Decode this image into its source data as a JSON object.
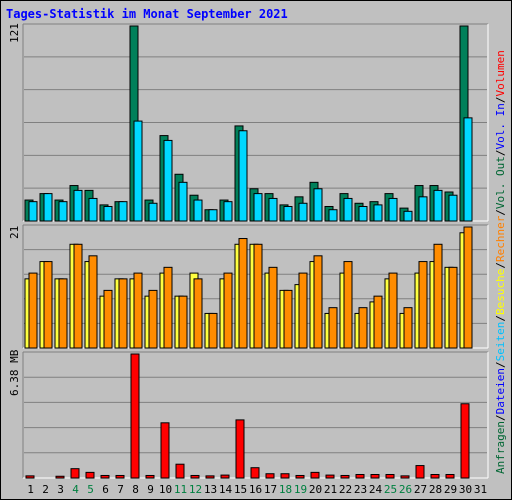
{
  "title": "Tages-Statistik im Monat September 2021",
  "panel_labels": {
    "top_max": "121",
    "mid_max": "21",
    "bottom_max": "6.38 MB"
  },
  "legend": [
    {
      "text": "Anfragen",
      "color": "#006633"
    },
    {
      "sep": "/",
      "color": "#000000"
    },
    {
      "text": "Dateien",
      "color": "#0000ff"
    },
    {
      "sep": "/",
      "color": "#000000"
    },
    {
      "text": "Seiten",
      "color": "#00c0ff"
    },
    {
      "sep": "/",
      "color": "#000000"
    },
    {
      "text": "Besuche",
      "color": "#ffff00"
    },
    {
      "sep": "/",
      "color": "#000000"
    },
    {
      "text": "Rechner",
      "color": "#ff8000"
    },
    {
      "sep": "/",
      "color": "#000000"
    },
    {
      "text": "Vol. Out",
      "color": "#006633"
    },
    {
      "sep": "/",
      "color": "#000000"
    },
    {
      "text": "Vol. In",
      "color": "#0000ff"
    },
    {
      "sep": "/",
      "color": "#000000"
    },
    {
      "text": "Volumen",
      "color": "#ff0000"
    }
  ],
  "colors": {
    "anfragen": "#00805a",
    "dateien": "#00d8ff",
    "seiten": "#00c0ff",
    "besuche": "#ffff40",
    "rechner": "#ff8c00",
    "volumen": "#ff0000",
    "weekday_label": "#000000",
    "weekend_label": "#008040"
  },
  "chart_data": [
    {
      "type": "bar",
      "title": "Tages-Statistik im Monat September 2021",
      "ylabel": "121",
      "ylim": [
        0,
        121
      ],
      "categories": [
        "1",
        "2",
        "3",
        "4",
        "5",
        "6",
        "7",
        "8",
        "9",
        "10",
        "11",
        "12",
        "13",
        "14",
        "15",
        "16",
        "17",
        "18",
        "19",
        "20",
        "21",
        "22",
        "23",
        "24",
        "25",
        "26",
        "27",
        "28",
        "29",
        "30",
        "31"
      ],
      "weekend_days": [
        "4",
        "5",
        "11",
        "12",
        "18",
        "19",
        "25",
        "26"
      ],
      "series": [
        {
          "name": "Anfragen",
          "values": [
            13,
            17,
            13,
            22,
            19,
            10,
            12,
            121,
            13,
            53,
            29,
            16,
            7,
            13,
            59,
            20,
            17,
            10,
            15,
            24,
            9,
            17,
            11,
            12,
            17,
            8,
            22,
            22,
            18,
            121,
            0
          ]
        },
        {
          "name": "Dateien",
          "values": [
            12,
            17,
            12,
            19,
            14,
            9,
            12,
            62,
            11,
            50,
            24,
            13,
            7,
            12,
            56,
            17,
            14,
            9,
            11,
            20,
            7,
            14,
            9,
            10,
            14,
            6,
            15,
            19,
            16,
            64,
            0
          ]
        }
      ]
    },
    {
      "type": "bar",
      "ylabel": "21",
      "ylim": [
        0,
        21
      ],
      "categories": [
        "1",
        "2",
        "3",
        "4",
        "5",
        "6",
        "7",
        "8",
        "9",
        "10",
        "11",
        "12",
        "13",
        "14",
        "15",
        "16",
        "17",
        "18",
        "19",
        "20",
        "21",
        "22",
        "23",
        "24",
        "25",
        "26",
        "27",
        "28",
        "29",
        "30",
        "31"
      ],
      "series": [
        {
          "name": "Besuche",
          "values": [
            12,
            15,
            12,
            18,
            15,
            9,
            12,
            12,
            9,
            13,
            9,
            13,
            6,
            12,
            18,
            18,
            13,
            10,
            11,
            15,
            6,
            13,
            6,
            8,
            12,
            6,
            13,
            15,
            14,
            20,
            0
          ]
        },
        {
          "name": "Rechner",
          "values": [
            13,
            15,
            12,
            18,
            16,
            10,
            12,
            13,
            10,
            14,
            9,
            12,
            6,
            13,
            19,
            18,
            14,
            10,
            13,
            16,
            7,
            15,
            7,
            9,
            13,
            7,
            15,
            18,
            14,
            21,
            0
          ]
        }
      ]
    },
    {
      "type": "bar",
      "ylabel": "6.38 MB",
      "ylim": [
        0,
        6.38
      ],
      "unit": "MB",
      "categories": [
        "1",
        "2",
        "3",
        "4",
        "5",
        "6",
        "7",
        "8",
        "9",
        "10",
        "11",
        "12",
        "13",
        "14",
        "15",
        "16",
        "17",
        "18",
        "19",
        "20",
        "21",
        "22",
        "23",
        "24",
        "25",
        "26",
        "27",
        "28",
        "29",
        "30",
        "31"
      ],
      "series": [
        {
          "name": "Volumen",
          "values": [
            0.11,
            0,
            0.09,
            0.48,
            0.29,
            0.13,
            0.13,
            6.38,
            0.13,
            2.84,
            0.71,
            0.13,
            0.11,
            0.15,
            2.99,
            0.53,
            0.22,
            0.22,
            0.13,
            0.29,
            0.15,
            0.13,
            0.18,
            0.18,
            0.18,
            0.11,
            0.64,
            0.18,
            0.18,
            3.82,
            0
          ]
        }
      ]
    }
  ]
}
